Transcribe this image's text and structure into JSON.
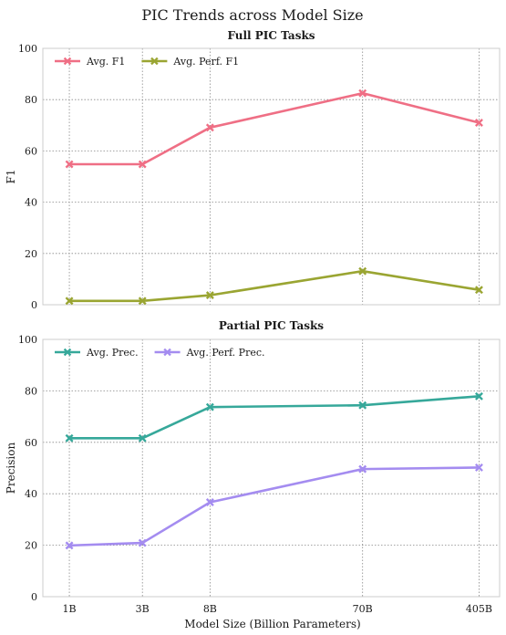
{
  "figure": {
    "title": "PIC Trends across Model Size",
    "xlabel": "Model Size (Billion Parameters)"
  },
  "chart_data": [
    {
      "type": "line",
      "title": "Full PIC Tasks",
      "ylabel": "F1",
      "ylim": [
        0,
        100
      ],
      "yticks": [
        0,
        20,
        40,
        60,
        80,
        100
      ],
      "x": [
        1,
        3,
        8,
        70,
        405
      ],
      "categories": [
        "1B",
        "3B",
        "8B",
        "70B",
        "405B"
      ],
      "grid": true,
      "legend": "top-left",
      "series": [
        {
          "name": "Avg. F1",
          "color": "#ef6f85",
          "values": [
            54.8,
            54.8,
            69.1,
            82.5,
            71.0
          ]
        },
        {
          "name": "Avg. Perf. F1",
          "color": "#9aa532",
          "values": [
            1.5,
            1.5,
            3.7,
            13.1,
            5.8
          ]
        }
      ]
    },
    {
      "type": "line",
      "title": "Partial PIC Tasks",
      "ylabel": "Precision",
      "ylim": [
        0,
        100
      ],
      "yticks": [
        0,
        20,
        40,
        60,
        80,
        100
      ],
      "x": [
        1,
        3,
        8,
        70,
        405
      ],
      "categories": [
        "1B",
        "3B",
        "8B",
        "70B",
        "405B"
      ],
      "grid": true,
      "legend": "top-left",
      "series": [
        {
          "name": "Avg. Prec.",
          "color": "#36a89a",
          "values": [
            61.6,
            61.6,
            73.7,
            74.4,
            77.9
          ]
        },
        {
          "name": "Avg. Perf. Prec.",
          "color": "#a48cf0",
          "values": [
            19.9,
            20.9,
            36.7,
            49.6,
            50.2
          ]
        }
      ]
    }
  ]
}
